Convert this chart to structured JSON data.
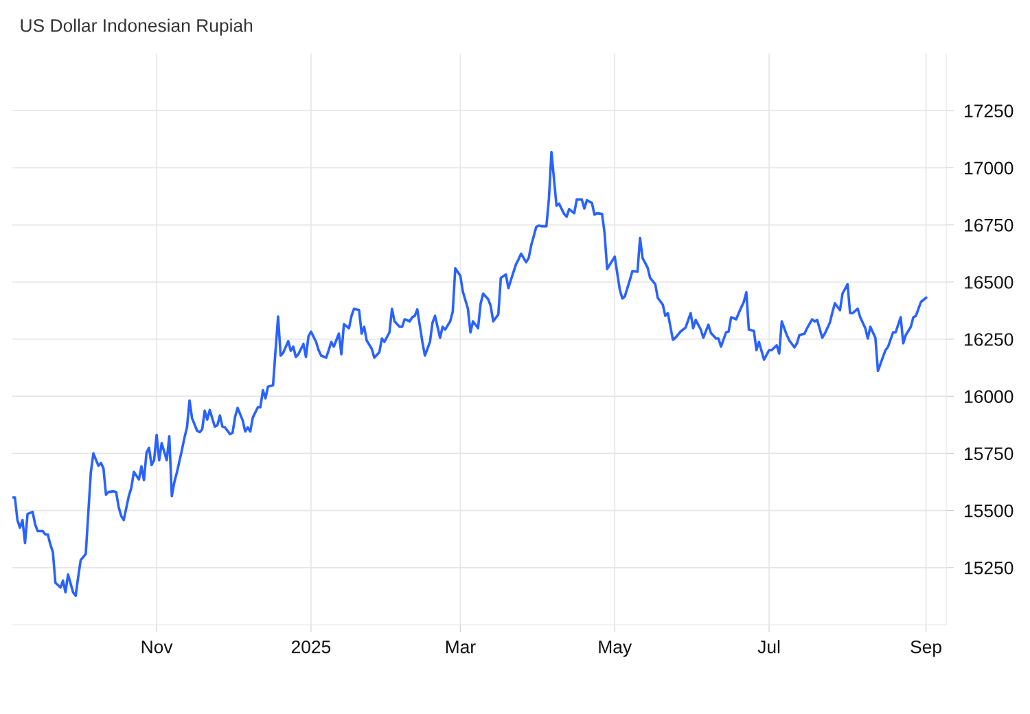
{
  "chart_data": {
    "type": "line",
    "title": "US Dollar Indonesian Rupiah",
    "x": [
      "2024-09-05",
      "2024-09-06",
      "2024-09-07",
      "2024-09-08",
      "2024-09-09",
      "2024-09-10",
      "2024-09-11",
      "2024-09-13",
      "2024-09-14",
      "2024-09-15",
      "2024-09-17",
      "2024-09-18",
      "2024-09-19",
      "2024-09-20",
      "2024-09-21",
      "2024-09-22",
      "2024-09-24",
      "2024-09-25",
      "2024-09-26",
      "2024-09-27",
      "2024-09-29",
      "2024-09-30",
      "2024-10-01",
      "2024-10-02",
      "2024-10-04",
      "2024-10-06",
      "2024-10-07",
      "2024-10-09",
      "2024-10-10",
      "2024-10-11",
      "2024-10-12",
      "2024-10-13",
      "2024-10-15",
      "2024-10-16",
      "2024-10-17",
      "2024-10-18",
      "2024-10-19",
      "2024-10-21",
      "2024-10-22",
      "2024-10-23",
      "2024-10-25",
      "2024-10-26",
      "2024-10-27",
      "2024-10-28",
      "2024-10-29",
      "2024-10-30",
      "2024-10-31",
      "2024-11-01",
      "2024-11-02",
      "2024-11-03",
      "2024-11-05",
      "2024-11-06",
      "2024-11-07",
      "2024-11-08",
      "2024-11-09",
      "2024-11-11",
      "2024-11-12",
      "2024-11-13",
      "2024-11-14",
      "2024-11-15",
      "2024-11-17",
      "2024-11-18",
      "2024-11-19",
      "2024-11-20",
      "2024-11-21",
      "2024-11-22",
      "2024-11-24",
      "2024-11-25",
      "2024-11-26",
      "2024-11-27",
      "2024-11-28",
      "2024-11-30",
      "2024-12-01",
      "2024-12-02",
      "2024-12-03",
      "2024-12-05",
      "2024-12-06",
      "2024-12-07",
      "2024-12-08",
      "2024-12-09",
      "2024-12-11",
      "2024-12-12",
      "2024-12-13",
      "2024-12-14",
      "2024-12-15",
      "2024-12-17",
      "2024-12-18",
      "2024-12-19",
      "2024-12-20",
      "2024-12-21",
      "2024-12-23",
      "2024-12-24",
      "2024-12-25",
      "2024-12-26",
      "2024-12-27",
      "2024-12-29",
      "2024-12-30",
      "2024-12-31",
      "2025-01-01",
      "2025-01-03",
      "2025-01-04",
      "2025-01-05",
      "2025-01-07",
      "2025-01-08",
      "2025-01-09",
      "2025-01-10",
      "2025-01-12",
      "2025-01-13",
      "2025-01-14",
      "2025-01-16",
      "2025-01-17",
      "2025-01-18",
      "2025-01-20",
      "2025-01-21",
      "2025-01-22",
      "2025-01-23",
      "2025-01-25",
      "2025-01-26",
      "2025-01-28",
      "2025-01-29",
      "2025-01-30",
      "2025-02-01",
      "2025-02-02",
      "2025-02-03",
      "2025-02-05",
      "2025-02-06",
      "2025-02-07",
      "2025-02-09",
      "2025-02-10",
      "2025-02-11",
      "2025-02-12",
      "2025-02-14",
      "2025-02-15",
      "2025-02-17",
      "2025-02-18",
      "2025-02-19",
      "2025-02-21",
      "2025-02-22",
      "2025-02-23",
      "2025-02-25",
      "2025-02-26",
      "2025-02-27",
      "2025-03-01",
      "2025-03-02",
      "2025-03-04",
      "2025-03-05",
      "2025-03-06",
      "2025-03-08",
      "2025-03-09",
      "2025-03-10",
      "2025-03-12",
      "2025-03-13",
      "2025-03-14",
      "2025-03-16",
      "2025-03-17",
      "2025-03-19",
      "2025-03-20",
      "2025-03-21",
      "2025-03-23",
      "2025-03-24",
      "2025-03-25",
      "2025-03-27",
      "2025-03-28",
      "2025-03-29",
      "2025-03-31",
      "2025-04-01",
      "2025-04-02",
      "2025-04-04",
      "2025-04-05",
      "2025-04-06",
      "2025-04-08",
      "2025-04-09",
      "2025-04-11",
      "2025-04-12",
      "2025-04-13",
      "2025-04-15",
      "2025-04-16",
      "2025-04-18",
      "2025-04-19",
      "2025-04-20",
      "2025-04-22",
      "2025-04-23",
      "2025-04-24",
      "2025-04-26",
      "2025-04-27",
      "2025-04-28",
      "2025-05-01",
      "2025-05-03",
      "2025-05-04",
      "2025-05-05",
      "2025-05-07",
      "2025-05-08",
      "2025-05-10",
      "2025-05-11",
      "2025-05-12",
      "2025-05-14",
      "2025-05-15",
      "2025-05-17",
      "2025-05-18",
      "2025-05-20",
      "2025-05-21",
      "2025-05-22",
      "2025-05-24",
      "2025-05-25",
      "2025-05-27",
      "2025-05-28",
      "2025-05-29",
      "2025-05-31",
      "2025-06-01",
      "2025-06-02",
      "2025-06-04",
      "2025-06-05",
      "2025-06-07",
      "2025-06-08",
      "2025-06-10",
      "2025-06-11",
      "2025-06-12",
      "2025-06-14",
      "2025-06-15",
      "2025-06-16",
      "2025-06-18",
      "2025-06-19",
      "2025-06-21",
      "2025-06-22",
      "2025-06-23",
      "2025-06-25",
      "2025-06-26",
      "2025-06-27",
      "2025-06-29",
      "2025-07-01",
      "2025-07-02",
      "2025-07-04",
      "2025-07-05",
      "2025-07-06",
      "2025-07-08",
      "2025-07-09",
      "2025-07-11",
      "2025-07-12",
      "2025-07-13",
      "2025-07-15",
      "2025-07-16",
      "2025-07-18",
      "2025-07-19",
      "2025-07-20",
      "2025-07-22",
      "2025-07-23",
      "2025-07-25",
      "2025-07-26",
      "2025-07-27",
      "2025-07-29",
      "2025-07-30",
      "2025-08-01",
      "2025-08-02",
      "2025-08-03",
      "2025-08-05",
      "2025-08-06",
      "2025-08-08",
      "2025-08-09",
      "2025-08-10",
      "2025-08-12",
      "2025-08-13",
      "2025-08-15",
      "2025-08-16",
      "2025-08-17",
      "2025-08-19",
      "2025-08-20",
      "2025-08-22",
      "2025-08-23",
      "2025-08-24",
      "2025-08-26",
      "2025-08-27",
      "2025-08-28",
      "2025-08-30",
      "2025-09-01"
    ],
    "series": [
      {
        "color": "#2962ff",
        "values": [
          15557,
          15557,
          15458,
          15425,
          15458,
          15358,
          15485,
          15494,
          15440,
          15410,
          15410,
          15395,
          15395,
          15352,
          15319,
          15184,
          15163,
          15193,
          15142,
          15220,
          15142,
          15127,
          15208,
          15283,
          15310,
          15666,
          15750,
          15696,
          15708,
          15684,
          15569,
          15581,
          15584,
          15581,
          15515,
          15476,
          15458,
          15563,
          15599,
          15669,
          15636,
          15693,
          15633,
          15753,
          15774,
          15699,
          15720,
          15831,
          15720,
          15795,
          15720,
          15825,
          15563,
          15624,
          15666,
          15765,
          15819,
          15864,
          15982,
          15904,
          15849,
          15843,
          15855,
          15937,
          15898,
          15940,
          15867,
          15873,
          15916,
          15867,
          15864,
          15834,
          15840,
          15910,
          15949,
          15895,
          15846,
          15864,
          15846,
          15907,
          15952,
          15952,
          16027,
          15991,
          16042,
          16048,
          16202,
          16349,
          16178,
          16190,
          16241,
          16199,
          16217,
          16172,
          16184,
          16229,
          16172,
          16262,
          16283,
          16238,
          16202,
          16178,
          16169,
          16202,
          16238,
          16217,
          16274,
          16184,
          16316,
          16298,
          16352,
          16383,
          16377,
          16274,
          16304,
          16244,
          16208,
          16169,
          16193,
          16253,
          16238,
          16280,
          16383,
          16328,
          16304,
          16304,
          16337,
          16328,
          16346,
          16352,
          16380,
          16238,
          16178,
          16238,
          16322,
          16352,
          16256,
          16304,
          16292,
          16328,
          16370,
          16560,
          16527,
          16458,
          16383,
          16280,
          16328,
          16298,
          16404,
          16449,
          16425,
          16395,
          16328,
          16358,
          16518,
          16533,
          16473,
          16509,
          16578,
          16599,
          16624,
          16587,
          16605,
          16660,
          16741,
          16747,
          16744,
          16744,
          16864,
          17069,
          16834,
          16843,
          16798,
          16786,
          16819,
          16801,
          16861,
          16861,
          16822,
          16858,
          16846,
          16795,
          16801,
          16798,
          16714,
          16557,
          16611,
          16467,
          16428,
          16437,
          16509,
          16548,
          16545,
          16693,
          16605,
          16563,
          16518,
          16491,
          16431,
          16401,
          16352,
          16364,
          16247,
          16256,
          16283,
          16292,
          16301,
          16364,
          16298,
          16334,
          16292,
          16256,
          16313,
          16277,
          16253,
          16253,
          16217,
          16280,
          16283,
          16346,
          16337,
          16364,
          16413,
          16455,
          16292,
          16286,
          16202,
          16238,
          16160,
          16202,
          16202,
          16223,
          16187,
          16328,
          16268,
          16244,
          16214,
          16232,
          16268,
          16274,
          16298,
          16337,
          16328,
          16334,
          16256,
          16274,
          16322,
          16367,
          16407,
          16377,
          16449,
          16491,
          16364,
          16364,
          16383,
          16346,
          16298,
          16253,
          16304,
          16256,
          16111,
          16172,
          16202,
          16217,
          16280,
          16280,
          16346,
          16232,
          16268,
          16304,
          16346,
          16352,
          16413,
          16431
        ]
      }
    ],
    "xlim": [
      "2024-09-05",
      "2025-09-09"
    ],
    "xticks": [
      {
        "value": "2024-11-01",
        "label": "Nov"
      },
      {
        "value": "2025-01-01",
        "label": "2025"
      },
      {
        "value": "2025-03-01",
        "label": "Mar"
      },
      {
        "value": "2025-05-01",
        "label": "May"
      },
      {
        "value": "2025-07-01",
        "label": "Jul"
      },
      {
        "value": "2025-09-01",
        "label": "Sep"
      }
    ],
    "ylim": [
      15000,
      17500
    ],
    "yticks": [
      15250,
      15500,
      15750,
      16000,
      16250,
      16500,
      16750,
      17000,
      17250
    ],
    "grid": true,
    "marker": "none",
    "line_style": "solid"
  }
}
